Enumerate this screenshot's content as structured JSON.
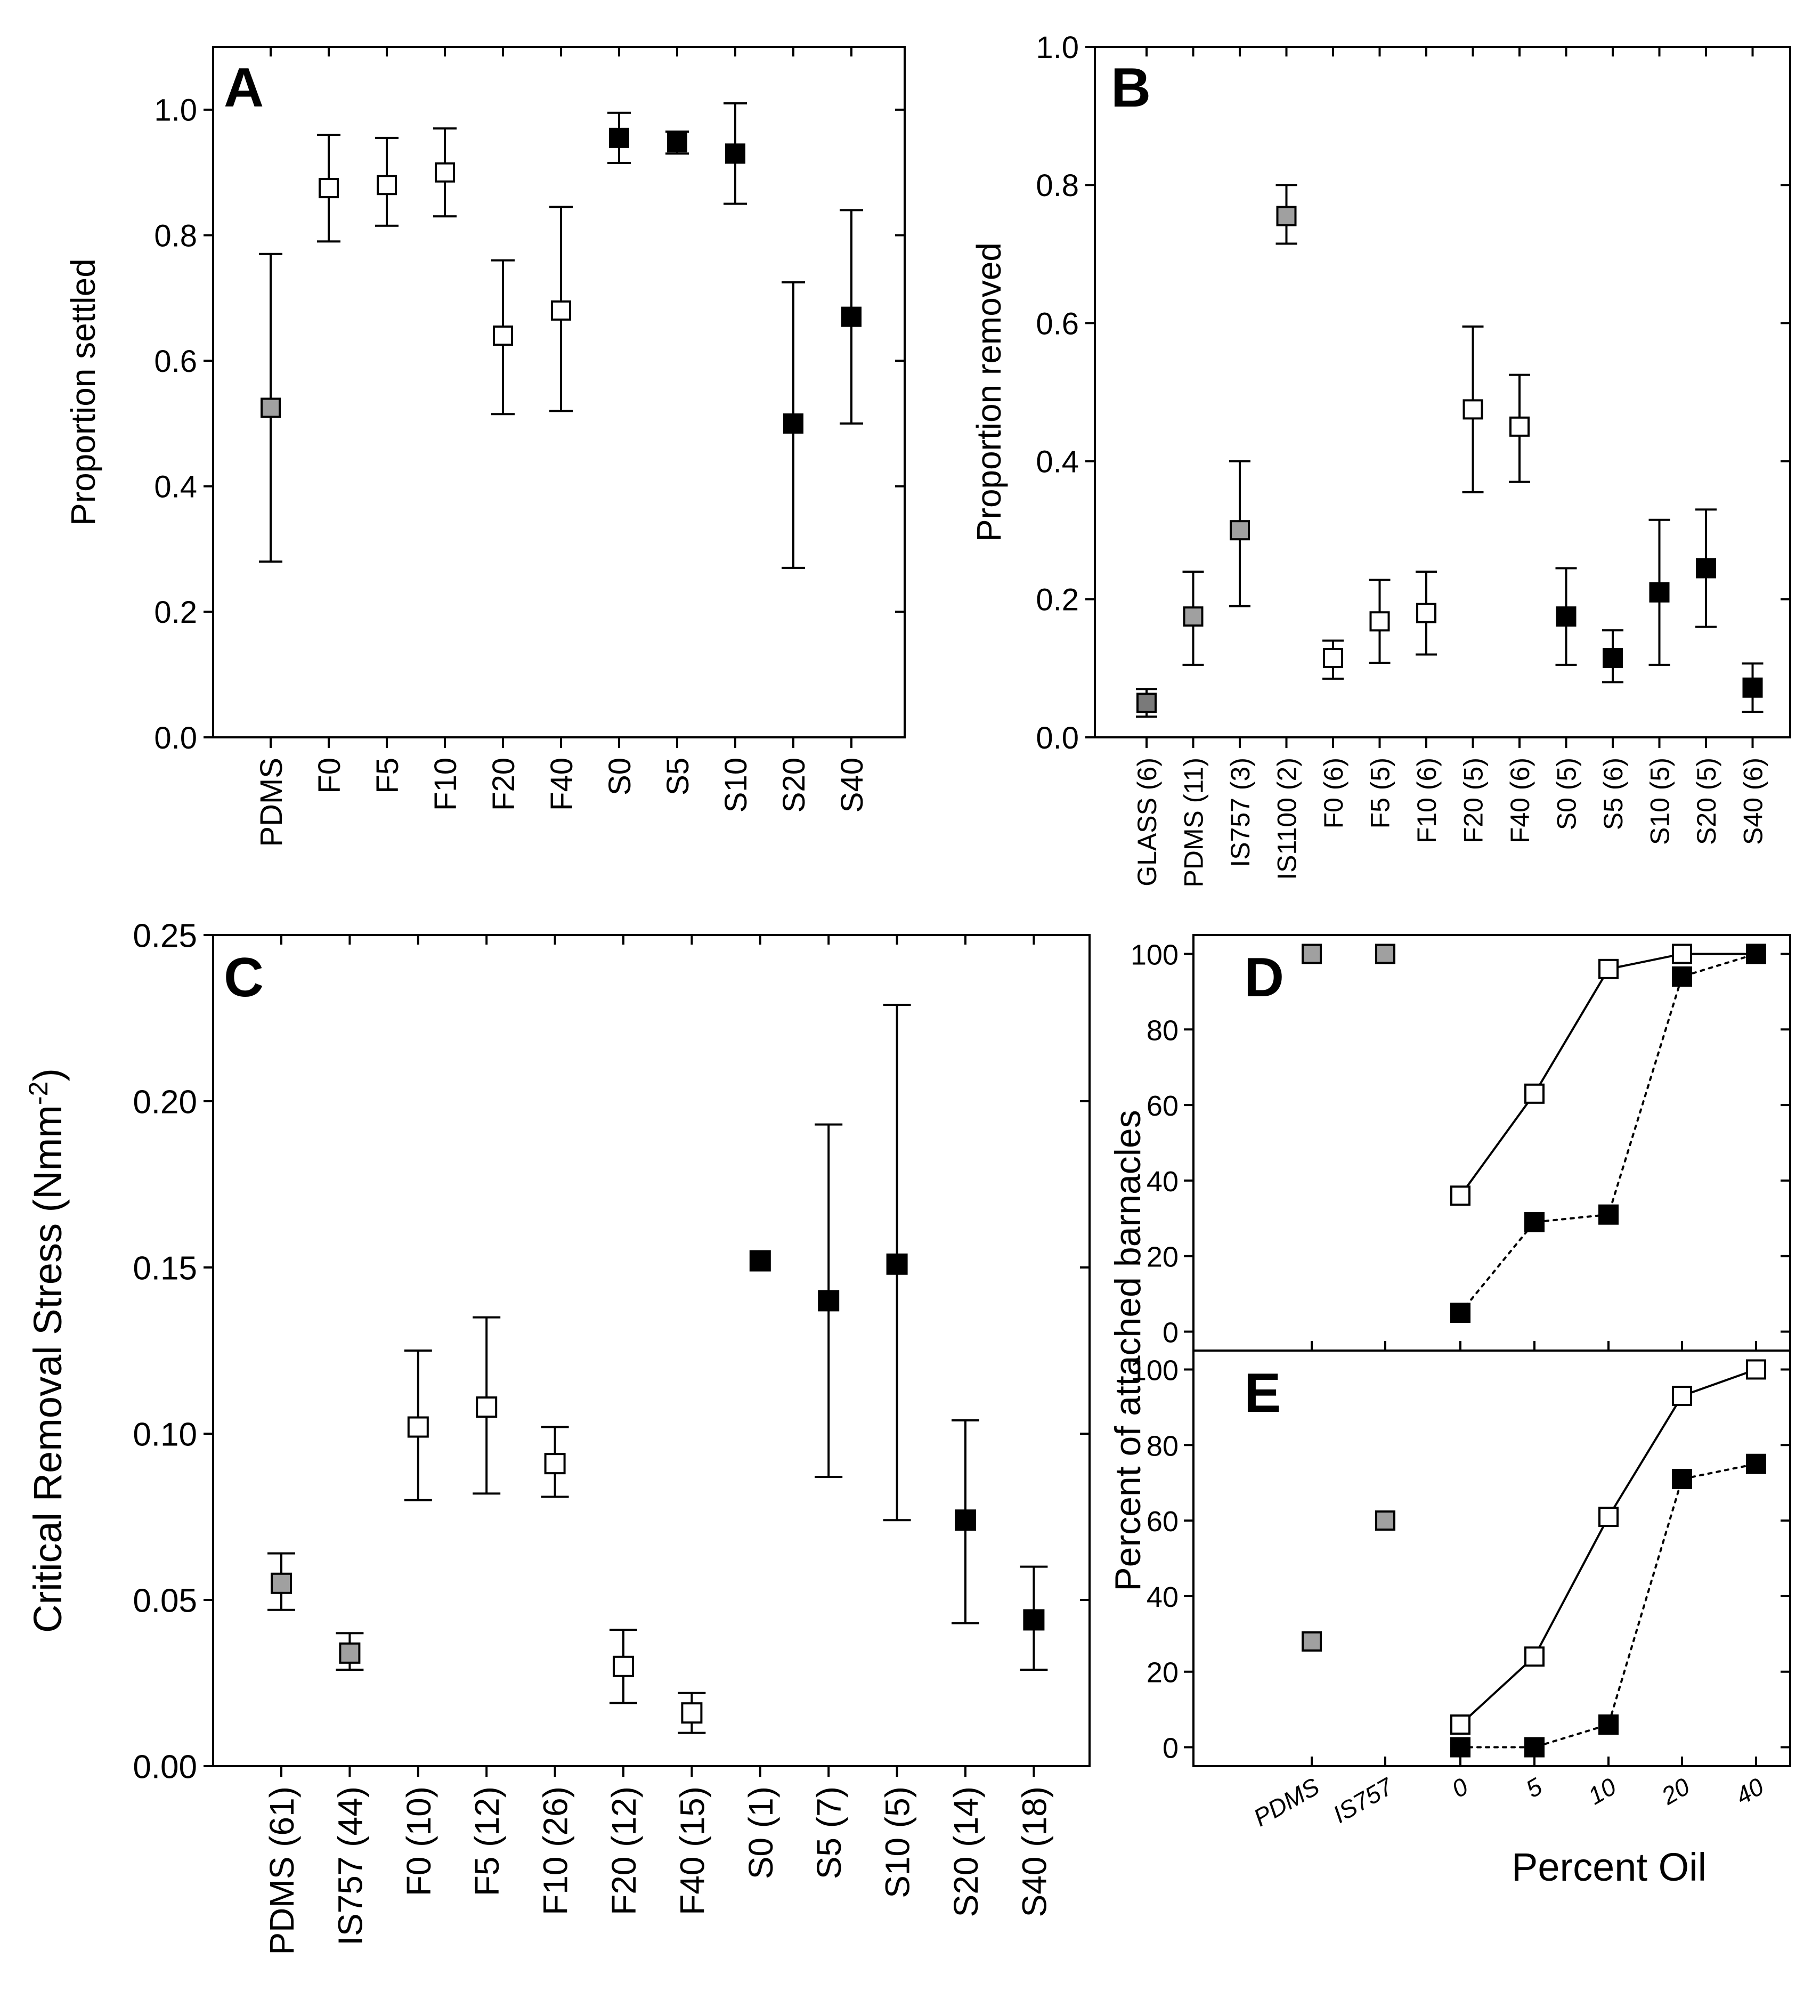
{
  "colors": {
    "open": "#ffffff",
    "filled": "#000000",
    "grey": "#a0a0a0",
    "axis": "#000000"
  },
  "chart_data": [
    {
      "panel": "A",
      "type": "scatter",
      "ylabel": "Proportion settled",
      "ylim": [
        0,
        1.1
      ],
      "yticks": [
        0.0,
        0.2,
        0.4,
        0.6,
        0.8,
        1.0
      ],
      "ytick_labels": [
        "0.0",
        "0.2",
        "0.4",
        "0.6",
        "0.8",
        "1.0"
      ],
      "categories": [
        "PDMS",
        "F0",
        "F5",
        "F10",
        "F20",
        "F40",
        "S0",
        "S5",
        "S10",
        "S20",
        "S40"
      ],
      "points": [
        {
          "y": 0.525,
          "lo": 0.28,
          "hi": 0.77,
          "s": "grey"
        },
        {
          "y": 0.875,
          "lo": 0.79,
          "hi": 0.96,
          "s": "open"
        },
        {
          "y": 0.88,
          "lo": 0.815,
          "hi": 0.955,
          "s": "open"
        },
        {
          "y": 0.9,
          "lo": 0.83,
          "hi": 0.97,
          "s": "open"
        },
        {
          "y": 0.64,
          "lo": 0.515,
          "hi": 0.76,
          "s": "open"
        },
        {
          "y": 0.68,
          "lo": 0.52,
          "hi": 0.845,
          "s": "open"
        },
        {
          "y": 0.955,
          "lo": 0.915,
          "hi": 0.995,
          "s": "filled"
        },
        {
          "y": 0.948,
          "lo": 0.93,
          "hi": 0.965,
          "s": "filled"
        },
        {
          "y": 0.93,
          "lo": 0.85,
          "hi": 1.01,
          "s": "filled"
        },
        {
          "y": 0.5,
          "lo": 0.27,
          "hi": 0.725,
          "s": "filled"
        },
        {
          "y": 0.67,
          "lo": 0.5,
          "hi": 0.84,
          "s": "filled"
        }
      ]
    },
    {
      "panel": "B",
      "type": "scatter",
      "ylabel": "Proportion removed",
      "ylim": [
        0,
        1.0
      ],
      "yticks": [
        0.0,
        0.2,
        0.4,
        0.6,
        0.8,
        1.0
      ],
      "ytick_labels": [
        "0.0",
        "0.2",
        "0.4",
        "0.6",
        "0.8",
        "1.0"
      ],
      "categories": [
        "GLASS (6)",
        "PDMS (11)",
        "IS757 (3)",
        "IS1100 (2)",
        "F0 (6)",
        "F5 (5)",
        "F10 (6)",
        "F20 (5)",
        "F40 (6)",
        "S0 (5)",
        "S5 (6)",
        "S10 (5)",
        "S20 (5)",
        "S40 (6)"
      ],
      "points": [
        {
          "y": 0.05,
          "lo": 0.03,
          "hi": 0.07,
          "s": "darkgrey"
        },
        {
          "y": 0.175,
          "lo": 0.105,
          "hi": 0.24,
          "s": "grey"
        },
        {
          "y": 0.3,
          "lo": 0.19,
          "hi": 0.4,
          "s": "grey"
        },
        {
          "y": 0.755,
          "lo": 0.715,
          "hi": 0.8,
          "s": "grey"
        },
        {
          "y": 0.115,
          "lo": 0.085,
          "hi": 0.14,
          "s": "open"
        },
        {
          "y": 0.168,
          "lo": 0.108,
          "hi": 0.228,
          "s": "open"
        },
        {
          "y": 0.18,
          "lo": 0.12,
          "hi": 0.24,
          "s": "open"
        },
        {
          "y": 0.475,
          "lo": 0.355,
          "hi": 0.595,
          "s": "open"
        },
        {
          "y": 0.45,
          "lo": 0.37,
          "hi": 0.525,
          "s": "open"
        },
        {
          "y": 0.175,
          "lo": 0.105,
          "hi": 0.245,
          "s": "filled"
        },
        {
          "y": 0.115,
          "lo": 0.08,
          "hi": 0.155,
          "s": "filled"
        },
        {
          "y": 0.21,
          "lo": 0.105,
          "hi": 0.315,
          "s": "filled"
        },
        {
          "y": 0.245,
          "lo": 0.16,
          "hi": 0.33,
          "s": "filled"
        },
        {
          "y": 0.072,
          "lo": 0.037,
          "hi": 0.107,
          "s": "filled"
        }
      ]
    },
    {
      "panel": "C",
      "type": "scatter",
      "ylabel": "Critical Removal Stress (Nmm",
      "ylabel_sup": "-2",
      "ylabel_tail": ")",
      "ylim": [
        0,
        0.25
      ],
      "yticks": [
        0.0,
        0.05,
        0.1,
        0.15,
        0.2,
        0.25
      ],
      "ytick_labels": [
        "0.00",
        "0.05",
        "0.10",
        "0.15",
        "0.20",
        "0.25"
      ],
      "categories": [
        "PDMS (61)",
        "IS757 (44)",
        "F0 (10)",
        "F5 (12)",
        "F10 (26)",
        "F20 (12)",
        "F40 (15)",
        "S0 (1)",
        "S5 (7)",
        "S10 (5)",
        "S20 (14)",
        "S40 (18)"
      ],
      "points": [
        {
          "y": 0.055,
          "lo": 0.047,
          "hi": 0.064,
          "s": "grey"
        },
        {
          "y": 0.034,
          "lo": 0.029,
          "hi": 0.04,
          "s": "grey"
        },
        {
          "y": 0.102,
          "lo": 0.08,
          "hi": 0.125,
          "s": "open"
        },
        {
          "y": 0.108,
          "lo": 0.082,
          "hi": 0.135,
          "s": "open"
        },
        {
          "y": 0.091,
          "lo": 0.081,
          "hi": 0.102,
          "s": "open"
        },
        {
          "y": 0.03,
          "lo": 0.019,
          "hi": 0.041,
          "s": "open"
        },
        {
          "y": 0.016,
          "lo": 0.01,
          "hi": 0.022,
          "s": "open"
        },
        {
          "y": 0.152,
          "lo": null,
          "hi": null,
          "s": "filled"
        },
        {
          "y": 0.14,
          "lo": 0.087,
          "hi": 0.193,
          "s": "filled"
        },
        {
          "y": 0.151,
          "lo": 0.074,
          "hi": 0.229,
          "s": "filled"
        },
        {
          "y": 0.074,
          "lo": 0.043,
          "hi": 0.104,
          "s": "filled"
        },
        {
          "y": 0.044,
          "lo": 0.029,
          "hi": 0.06,
          "s": "filled"
        }
      ]
    },
    {
      "panel": "D",
      "type": "line",
      "ylim": [
        -5,
        105
      ],
      "yticks": [
        0,
        20,
        40,
        60,
        80,
        100
      ],
      "ytick_labels": [
        "0",
        "20",
        "40",
        "60",
        "80",
        "100"
      ],
      "refs": [
        {
          "label": "PDMS",
          "y": 100
        },
        {
          "label": "IS757",
          "y": 100
        }
      ],
      "oil": [
        "0",
        "5",
        "10",
        "20",
        "40"
      ],
      "series": [
        {
          "style": "open",
          "line": "solid",
          "values": [
            36,
            63,
            96,
            100,
            100
          ]
        },
        {
          "style": "filled",
          "line": "dotted",
          "values": [
            5,
            29,
            31,
            94,
            100
          ]
        }
      ]
    },
    {
      "panel": "E",
      "type": "line",
      "ylim": [
        -5,
        105
      ],
      "yticks": [
        0,
        20,
        40,
        60,
        80,
        100
      ],
      "ytick_labels": [
        "0",
        "20",
        "40",
        "60",
        "80",
        "100"
      ],
      "refs": [
        {
          "label": "PDMS",
          "y": 28
        },
        {
          "label": "IS757",
          "y": 60
        }
      ],
      "oil": [
        "0",
        "5",
        "10",
        "20",
        "40"
      ],
      "series": [
        {
          "style": "open",
          "line": "solid",
          "values": [
            6,
            24,
            61,
            93,
            100
          ]
        },
        {
          "style": "filled",
          "line": "dotted",
          "values": [
            0,
            0,
            6,
            71,
            75
          ]
        }
      ],
      "ylabel": "Percent of attached barnacles",
      "xlabel": "Percent Oil",
      "xtick_labels": [
        "PDMS",
        "IS757",
        "0",
        "5",
        "10",
        "20",
        "40"
      ]
    }
  ]
}
